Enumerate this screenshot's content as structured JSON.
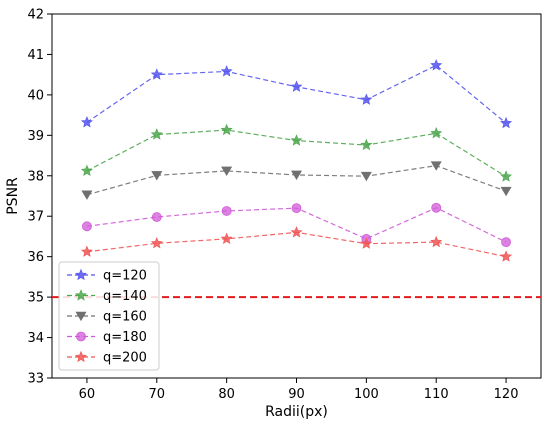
{
  "chart_data": {
    "type": "line",
    "xlabel": "Radii(px)",
    "ylabel": "PSNR",
    "x": [
      60,
      70,
      80,
      90,
      100,
      110,
      120
    ],
    "xlim": [
      55,
      125
    ],
    "ylim": [
      33,
      42
    ],
    "x_ticks": [
      "60",
      "70",
      "80",
      "90",
      "100",
      "110",
      "120"
    ],
    "y_ticks": [
      "33",
      "34",
      "35",
      "36",
      "37",
      "38",
      "39",
      "40",
      "41",
      "42"
    ],
    "grid": false,
    "legend_position": "lower-left",
    "reference_line": {
      "y": 35,
      "color": "#e41a1c",
      "style": "dashed"
    },
    "series": [
      {
        "name": "q=120",
        "color": "#5555ee",
        "marker": "star",
        "values": [
          39.32,
          40.5,
          40.58,
          40.2,
          39.88,
          40.73,
          39.3
        ]
      },
      {
        "name": "q=140",
        "color": "#4ca64c",
        "marker": "star",
        "values": [
          38.12,
          39.02,
          39.13,
          38.87,
          38.76,
          39.05,
          37.98
        ]
      },
      {
        "name": "q=160",
        "color": "#707070",
        "marker": "triangle-down",
        "values": [
          37.53,
          38.01,
          38.12,
          38.02,
          37.99,
          38.25,
          37.62
        ]
      },
      {
        "name": "q=180",
        "color": "#d05ad8",
        "marker": "circle",
        "values": [
          36.75,
          36.98,
          37.13,
          37.2,
          36.44,
          37.21,
          36.36
        ]
      },
      {
        "name": "q=200",
        "color": "#f05555",
        "marker": "star",
        "values": [
          36.12,
          36.33,
          36.44,
          36.6,
          36.32,
          36.36,
          36.0
        ]
      }
    ]
  }
}
